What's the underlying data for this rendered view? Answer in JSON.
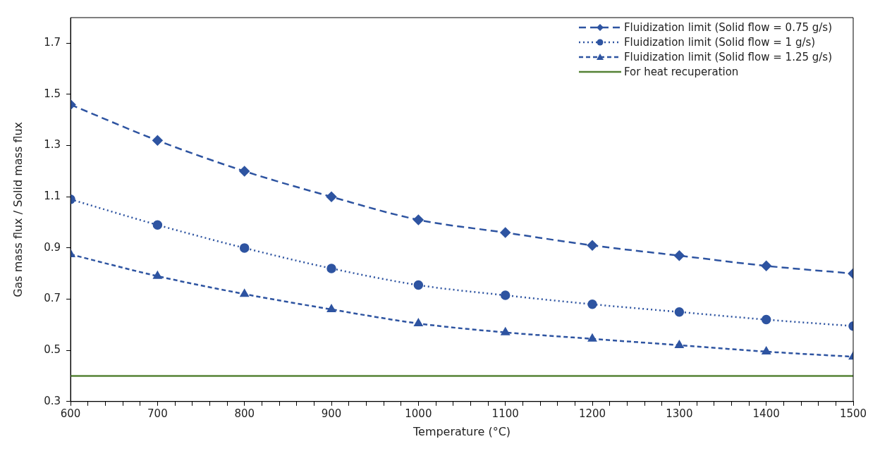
{
  "chart_data": {
    "type": "line",
    "xlabel": "Temperature (°C)",
    "ylabel": "Gas mass flux / Solid mass flux",
    "x": [
      600,
      700,
      800,
      900,
      1000,
      1100,
      1200,
      1300,
      1400,
      1500
    ],
    "xlim": [
      600,
      1500
    ],
    "xticks": [
      600,
      {
        "value": 620,
        "label": null
      },
      {
        "value": 640,
        "label": null
      },
      {
        "value": 660,
        "label": null
      },
      {
        "value": 680,
        "label": null
      },
      700,
      {
        "value": 720,
        "label": null
      },
      {
        "value": 740,
        "label": null
      },
      {
        "value": 760,
        "label": null
      },
      {
        "value": 780,
        "label": null
      },
      800,
      {
        "value": 820,
        "label": null
      },
      {
        "value": 840,
        "label": null
      },
      {
        "value": 860,
        "label": null
      },
      {
        "value": 880,
        "label": null
      },
      900,
      {
        "value": 920,
        "label": null
      },
      {
        "value": 940,
        "label": null
      },
      {
        "value": 960,
        "label": null
      },
      {
        "value": 980,
        "label": null
      },
      1000,
      {
        "value": 1020,
        "label": null
      },
      {
        "value": 1040,
        "label": null
      },
      {
        "value": 1060,
        "label": null
      },
      {
        "value": 1080,
        "label": null
      },
      1100,
      {
        "value": 1120,
        "label": null
      },
      {
        "value": 1140,
        "label": null
      },
      {
        "value": 1160,
        "label": null
      },
      {
        "value": 1180,
        "label": null
      },
      1200,
      {
        "value": 1220,
        "label": null
      },
      {
        "value": 1240,
        "label": null
      },
      {
        "value": 1260,
        "label": null
      },
      {
        "value": 1280,
        "label": null
      },
      1300,
      {
        "value": 1320,
        "label": null
      },
      {
        "value": 1340,
        "label": null
      },
      {
        "value": 1360,
        "label": null
      },
      {
        "value": 1380,
        "label": null
      },
      1400,
      {
        "value": 1420,
        "label": null
      },
      {
        "value": 1440,
        "label": null
      },
      {
        "value": 1460,
        "label": null
      },
      {
        "value": 1480,
        "label": null
      },
      1500
    ],
    "ylim": [
      0.3,
      1.8
    ],
    "yticks": [
      0.3,
      0.5,
      0.7,
      0.9,
      1.1,
      1.3,
      1.5,
      1.7
    ],
    "grid": false,
    "legend": "top right",
    "series": [
      {
        "name": "Fluidization limit (Solid flow = 0.75 g/s)",
        "color": "#2e54a1",
        "marker": "diamond",
        "line_style": "dashed",
        "values": [
          1.46,
          1.32,
          1.2,
          1.1,
          1.01,
          0.96,
          0.91,
          0.87,
          0.83,
          0.8
        ]
      },
      {
        "name": "Fluidization limit (Solid flow = 1 g/s)",
        "color": "#2e54a1",
        "marker": "circle",
        "line_style": "dotted",
        "values": [
          1.09,
          0.99,
          0.9,
          0.82,
          0.755,
          0.715,
          0.68,
          0.65,
          0.62,
          0.595
        ]
      },
      {
        "name": "Fluidization limit (Solid flow = 1.25 g/s)",
        "color": "#2e54a1",
        "marker": "triangle",
        "line_style": "dashed",
        "values": [
          0.875,
          0.79,
          0.72,
          0.66,
          0.605,
          0.57,
          0.545,
          0.52,
          0.495,
          0.475
        ]
      },
      {
        "name": "For heat recuperation",
        "color": "#548235",
        "marker": "none",
        "line_style": "solid",
        "values": [
          0.4,
          0.4,
          0.4,
          0.4,
          0.4,
          0.4,
          0.4,
          0.4,
          0.4,
          0.4
        ]
      }
    ]
  }
}
